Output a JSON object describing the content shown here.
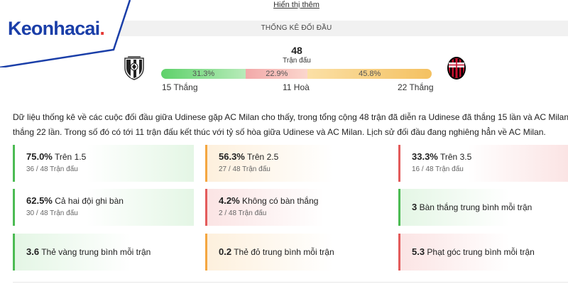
{
  "header": {
    "show_more_link": "Hiển thị thêm",
    "section_title": "THỐNG KÊ ĐỐI ĐẦU"
  },
  "brand": {
    "name_main": "Keonhacai",
    "name_dot": ".",
    "color_primary": "#1a3ea8",
    "color_accent": "#e53935"
  },
  "head_to_head": {
    "total": "48",
    "total_label": "Trận đấu",
    "home_team_icon": "udinese-crest-icon",
    "away_team_icon": "ac-milan-crest-icon",
    "win_pct": "31.3%",
    "draw_pct": "22.9%",
    "lose_pct": "45.8%",
    "win_share": 0.313,
    "draw_share": 0.229,
    "lose_share": 0.458,
    "win_text": "15 Thắng",
    "draw_text": "11 Hoà",
    "lose_text": "22 Thắng",
    "colors": {
      "win": "#5ed16a",
      "draw": "#f2a9a9",
      "lose": "#f4c161"
    }
  },
  "summary": {
    "line1": "Dữ liệu thống kê về các cuộc đối đầu giữa Udinese gặp AC Milan cho thấy, trong tổng cộng 48 trận đã diễn ra Udinese đã thắng 15 lần và AC Milan đã",
    "line2": "thắng 22 lần. Trong số đó có tới 11 trận đấu kết thúc với tỷ số hòa giữa Udinese và AC Milan. Lịch sử đối đầu đang nghiêng hẳn về AC Milan."
  },
  "stats": [
    {
      "pct": "75.0%",
      "label": "Trên 1.5",
      "sub": "36 / 48 Trận đấu"
    },
    {
      "pct": "56.3%",
      "label": "Trên 2.5",
      "sub": "27 / 48 Trận đấu"
    },
    {
      "pct": "33.3%",
      "label": "Trên 3.5",
      "sub": "16 / 48 Trận đấu"
    },
    {
      "pct": "62.5%",
      "label": "Cả hai đội ghi bàn",
      "sub": "30 / 48 Trận đấu"
    },
    {
      "pct": "4.2%",
      "label": "Không có bàn thắng",
      "sub": "2 / 48 Trận đấu"
    },
    {
      "pct": "3",
      "label": "Bàn thắng trung bình mỗi trận"
    },
    {
      "pct": "3.6",
      "label": "Thẻ vàng trung bình mỗi trận"
    },
    {
      "pct": "0.2",
      "label": "Thẻ đỏ trung bình mỗi trận"
    },
    {
      "pct": "5.3",
      "label": "Phạt góc trung bình mỗi trận"
    }
  ]
}
